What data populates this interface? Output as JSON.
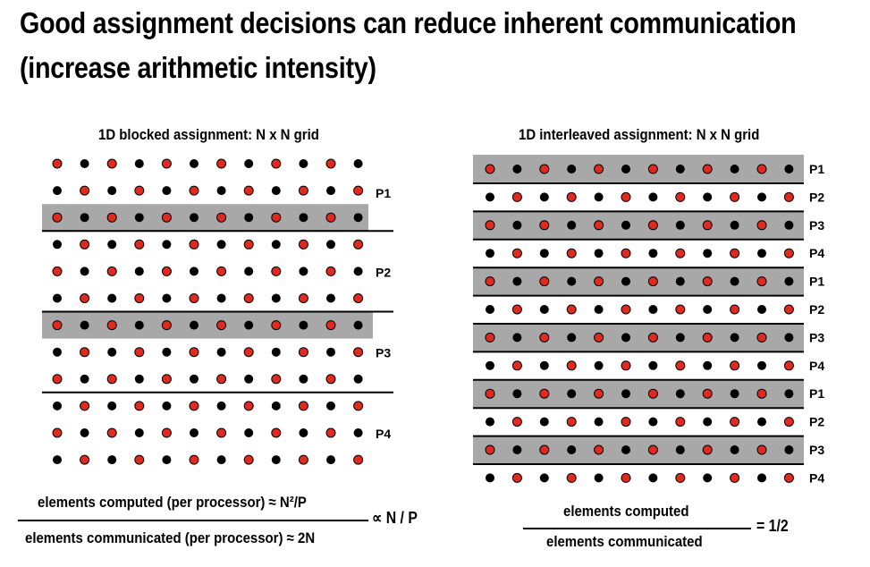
{
  "slide": {
    "title_line1": "Good assignment decisions can reduce inherent communication",
    "title_line2": "(increase arithmetic intensity)"
  },
  "left_panel": {
    "heading": "1D blocked assignment: N x N grid",
    "columns": 12,
    "rows": 12,
    "proc_labels": [
      {
        "text": "P1",
        "row": 1
      },
      {
        "text": "P2",
        "row": 4
      },
      {
        "text": "P3",
        "row": 7
      },
      {
        "text": "P4",
        "row": 10
      }
    ],
    "highlight_rows": [
      2,
      6
    ],
    "separator_after_rows": [
      2,
      5,
      8
    ],
    "numerator": "elements computed (per processor) ≈ N²/P",
    "denominator": "elements communicated (per processor) ≈ 2N",
    "result": "∝ N / P"
  },
  "right_panel": {
    "heading": "1D interleaved assignment: N x N grid",
    "columns": 12,
    "rows": 12,
    "proc_labels": [
      "P1",
      "P2",
      "P3",
      "P4",
      "P1",
      "P2",
      "P3",
      "P4",
      "P1",
      "P2",
      "P3",
      "P4"
    ],
    "highlight_rows": [
      0,
      2,
      4,
      6,
      8,
      10
    ],
    "numerator": "elements computed",
    "denominator": "elements communicated",
    "result": "= 1/2"
  },
  "colors": {
    "red_dot": "#e0291f",
    "black_dot": "#000000",
    "highlight": "#a8a8a8"
  }
}
